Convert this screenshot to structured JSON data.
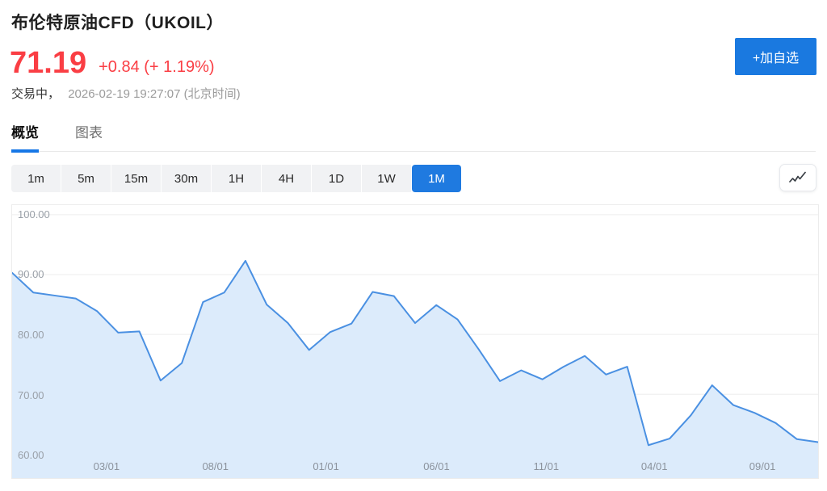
{
  "header": {
    "title": "布伦特原油CFD（UKOIL）",
    "price": "71.19",
    "change": "+0.84 (+ 1.19%)",
    "status_label": "交易中，",
    "timestamp": "2026-02-19 19:27:07 (北京时间)",
    "add_watchlist_label": "+加自选"
  },
  "tabs": [
    {
      "label": "概览",
      "active": true
    },
    {
      "label": "图表",
      "active": false
    }
  ],
  "toolbar": {
    "intervals": [
      "1m",
      "5m",
      "15m",
      "30m",
      "1H",
      "4H",
      "1D",
      "1W",
      "1M"
    ],
    "selected_interval": "1M",
    "chart_style_icon": "line-chart-icon"
  },
  "colors": {
    "accent_blue": "#1a79e0",
    "price_red": "#fa3e44",
    "line_blue": "#4a90e2",
    "area_fill": "#dcebfb"
  },
  "chart_data": {
    "type": "area",
    "title": "",
    "xlabel": "",
    "ylabel": "",
    "x_ticks": [
      {
        "label": "03/01",
        "f": 0.117
      },
      {
        "label": "08/01",
        "f": 0.252
      },
      {
        "label": "01/01",
        "f": 0.389
      },
      {
        "label": "06/01",
        "f": 0.526
      },
      {
        "label": "11/01",
        "f": 0.662
      },
      {
        "label": "04/01",
        "f": 0.796
      },
      {
        "label": "09/01",
        "f": 0.93
      }
    ],
    "y_ticks": [
      {
        "value": 100,
        "label": "100.00"
      },
      {
        "value": 90,
        "label": "90.00"
      },
      {
        "value": 80,
        "label": "80.00"
      },
      {
        "value": 70,
        "label": "70.00"
      },
      {
        "value": 60,
        "label": "60.00"
      }
    ],
    "y_axis": {
      "top_value": 101.6,
      "bottom_value": 56.0
    },
    "grid": true,
    "values": [
      90.3,
      87.0,
      86.5,
      86.0,
      83.9,
      80.3,
      80.5,
      72.3,
      75.2,
      85.4,
      87.0,
      92.3,
      85.0,
      81.9,
      77.4,
      80.4,
      81.8,
      87.1,
      86.4,
      81.9,
      84.9,
      82.5,
      77.5,
      72.2,
      74.0,
      72.5,
      74.6,
      76.4,
      73.3,
      74.6,
      61.5,
      62.6,
      66.5,
      71.5,
      68.2,
      66.9,
      65.2,
      62.5,
      62.0
    ],
    "line_color": "#4a90e2",
    "fill_color": "#dcebfb",
    "grid_color": "#ededed"
  }
}
